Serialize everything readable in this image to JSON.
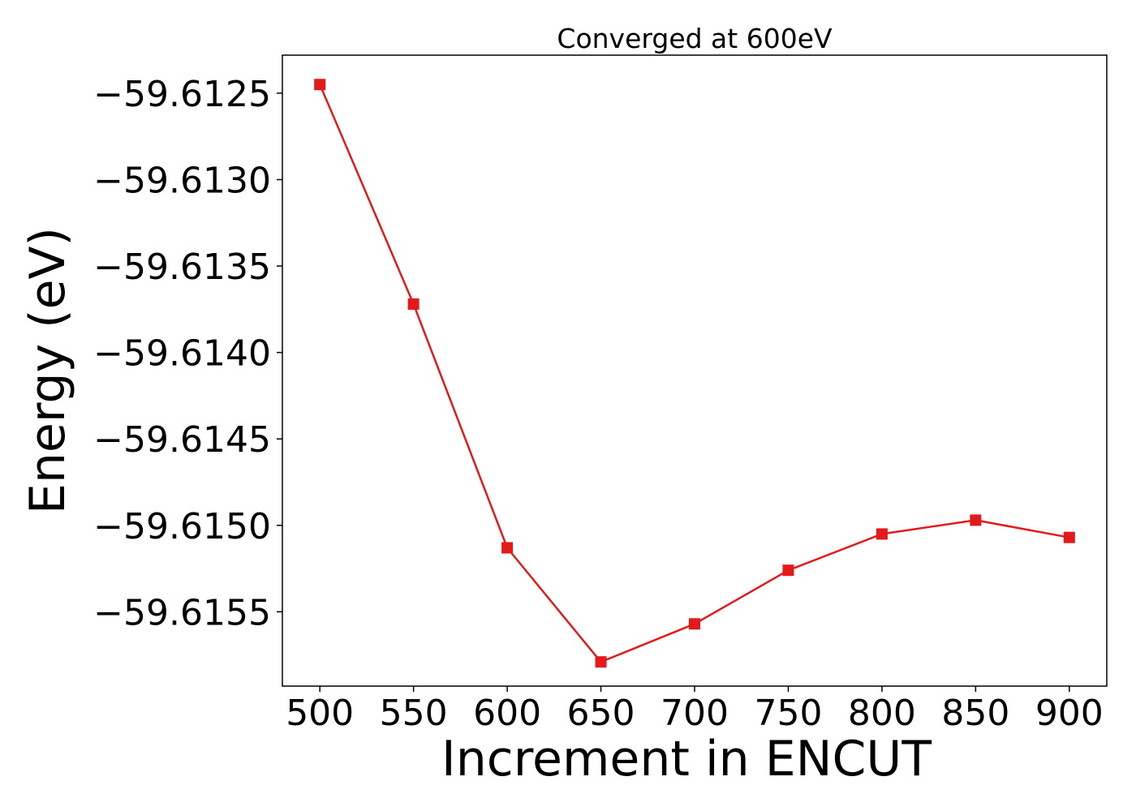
{
  "chart_data": {
    "type": "line",
    "title": "Converged at 600eV",
    "xlabel": "Increment in ENCUT",
    "ylabel": "Energy (eV)",
    "x": [
      500,
      550,
      600,
      650,
      700,
      750,
      800,
      850,
      900
    ],
    "x_ticks": [
      500,
      550,
      600,
      650,
      700,
      750,
      800,
      850,
      900
    ],
    "x_tick_labels": [
      "500",
      "550",
      "600",
      "650",
      "700",
      "750",
      "800",
      "850",
      "900"
    ],
    "y_ticks": [
      -59.6125,
      -59.613,
      -59.6135,
      -59.614,
      -59.6145,
      -59.615,
      -59.6155
    ],
    "y_tick_labels": [
      "−59.6125",
      "−59.6130",
      "−59.6135",
      "−59.6140",
      "−59.6145",
      "−59.6150",
      "−59.6155"
    ],
    "xlim": [
      480,
      920
    ],
    "ylim": [
      -59.61593,
      -59.61228
    ],
    "grid": false,
    "series": [
      {
        "marker": "square",
        "color": "#e31a1c",
        "values": [
          -59.61245,
          -59.61372,
          -59.61513,
          -59.61579,
          -59.61557,
          -59.61526,
          -59.61505,
          -59.61497,
          -59.61507
        ]
      }
    ]
  }
}
